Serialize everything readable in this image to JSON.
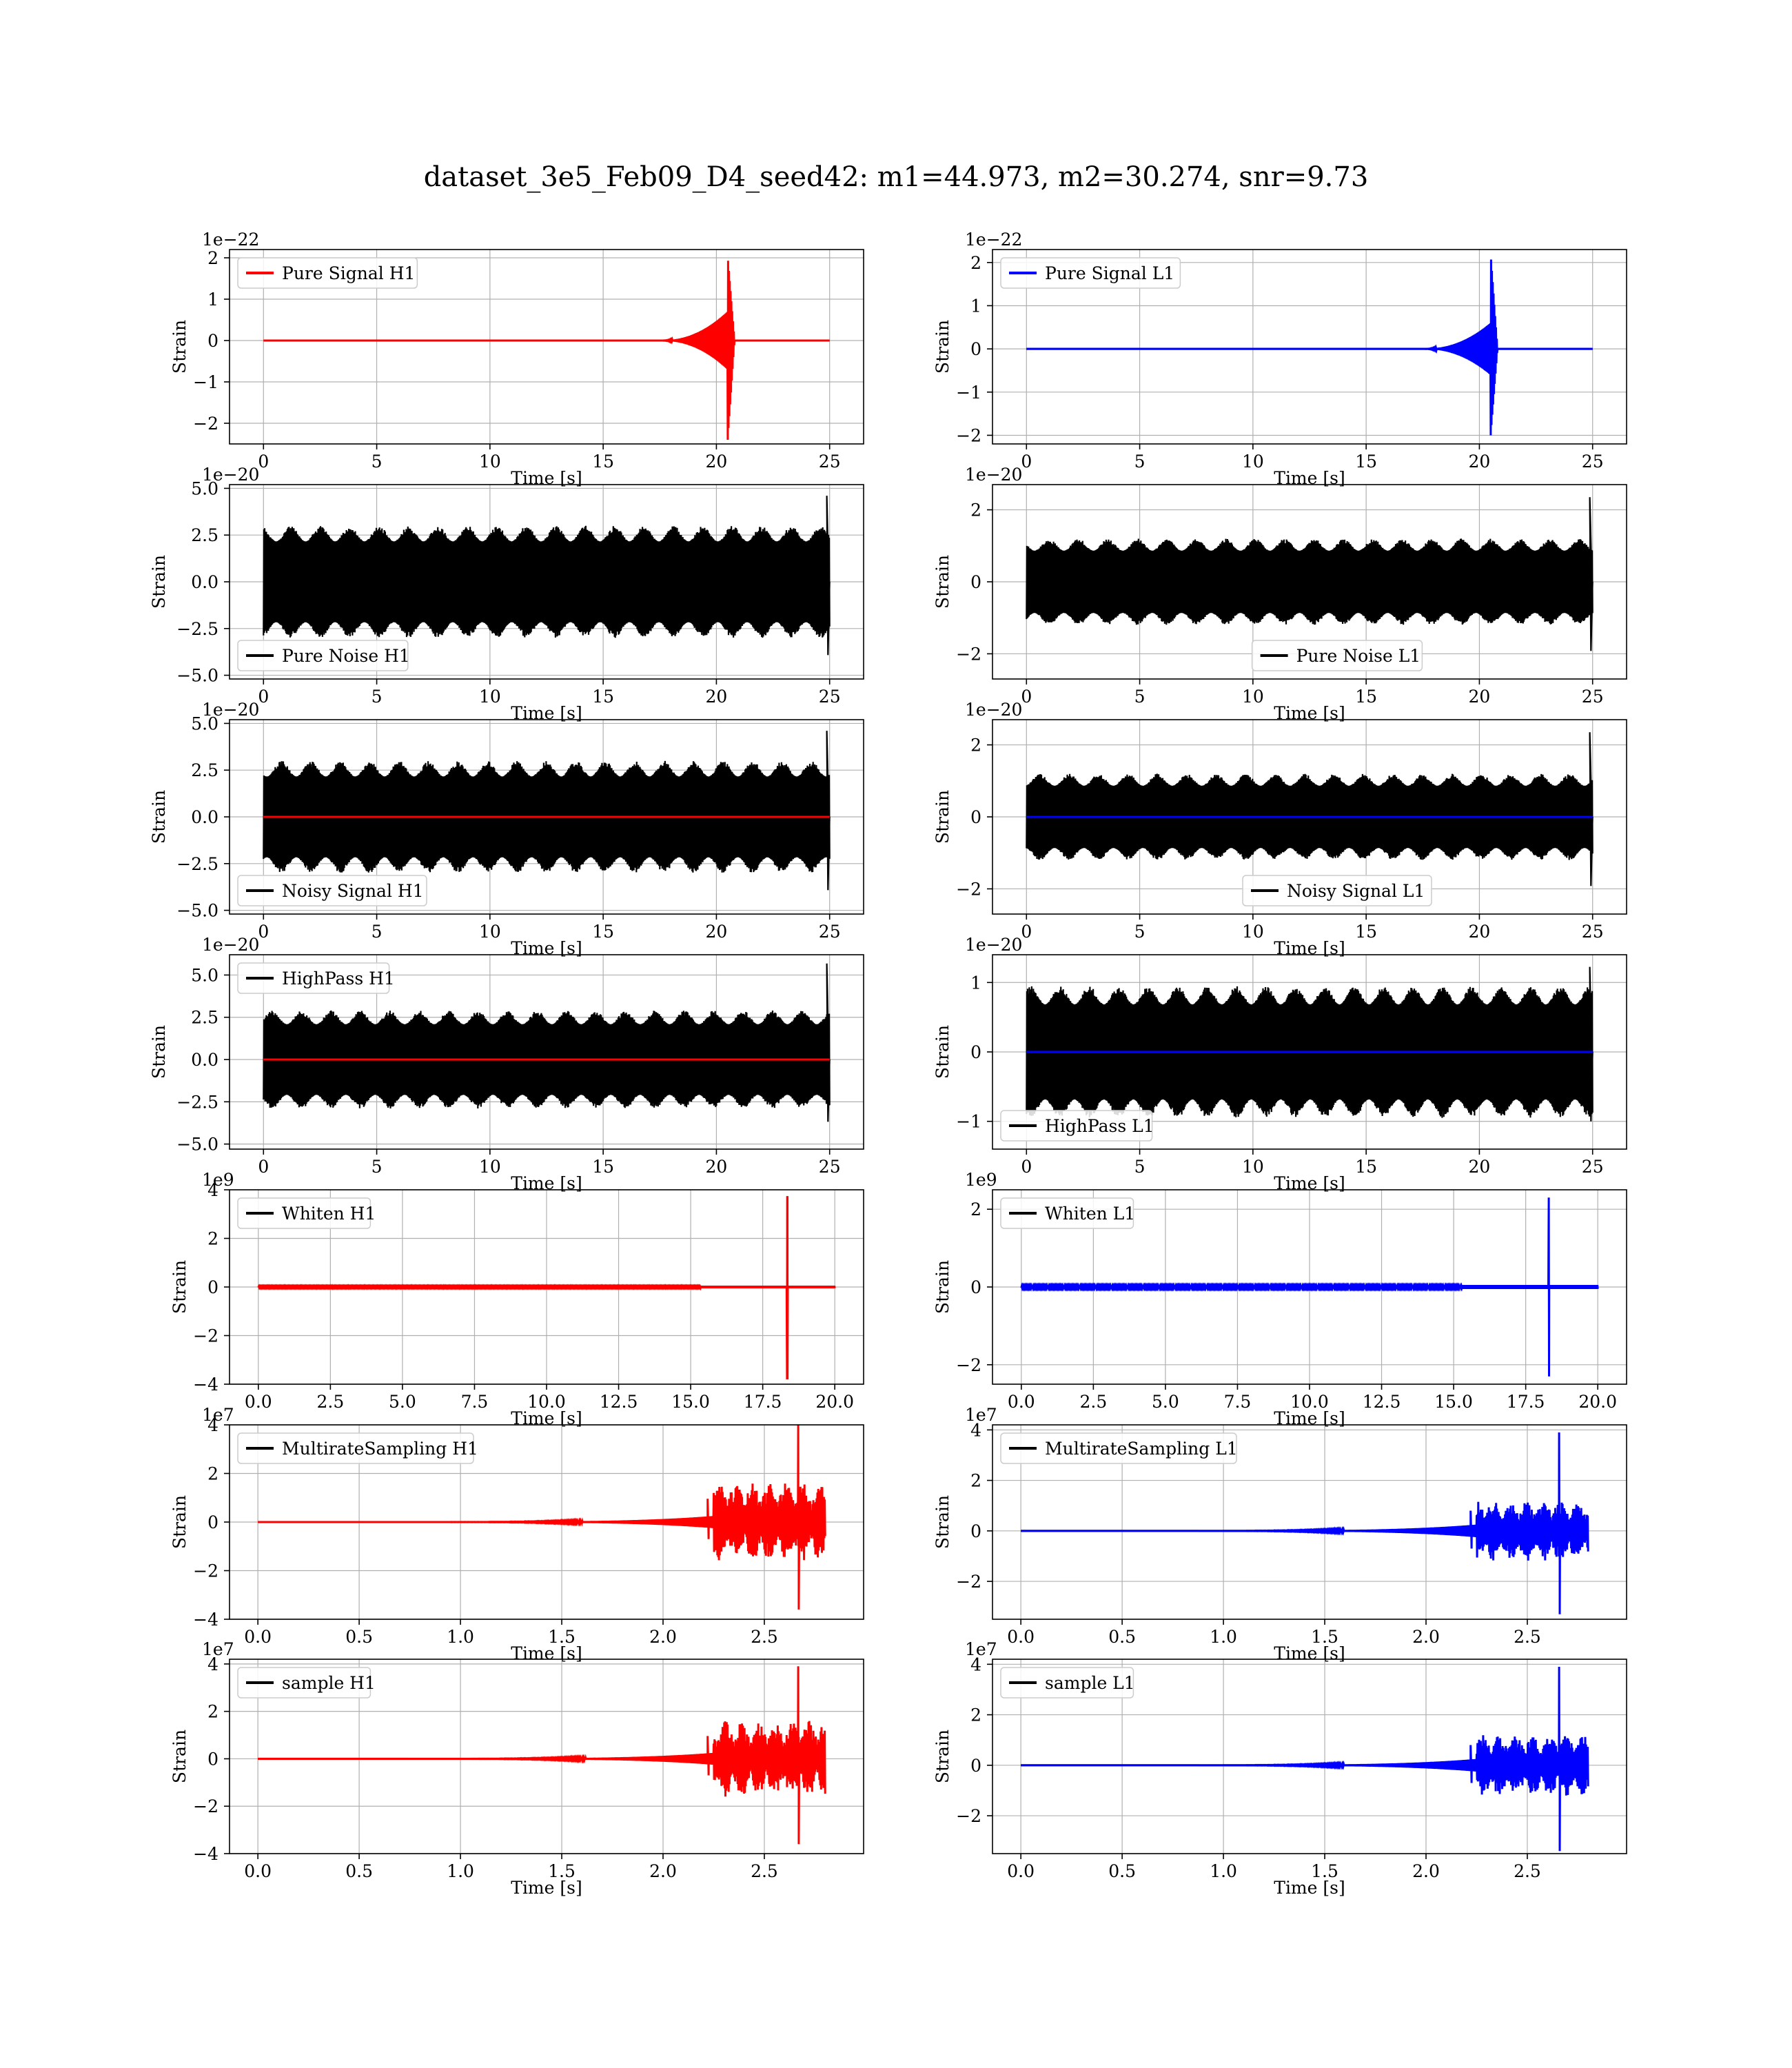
{
  "figure": {
    "title": "dataset_3e5_Feb09_D4_seed42: m1=44.973, m2=30.274, snr=9.73"
  },
  "colors": {
    "h1": "#ff0000",
    "l1": "#0000ff",
    "noise": "#000000"
  },
  "chart_data": [
    {
      "type": "line",
      "row": 0,
      "col": 0,
      "kind": "chirp",
      "legend": "Pure Signal H1",
      "legend_color": "#ff0000",
      "legend_loc": "upper-left",
      "series_colors": [
        "#ff0000"
      ],
      "xlabel": "Time [s]",
      "ylabel": "Strain",
      "offset": "1e−22",
      "xlim": [
        -1.5,
        26.5
      ],
      "ylim": [
        -2.5,
        2.2
      ],
      "xticks": [
        0,
        5,
        10,
        15,
        20,
        25
      ],
      "xtick_labels": [
        "0",
        "5",
        "10",
        "15",
        "20",
        "25"
      ],
      "yticks": [
        -2,
        -1,
        0,
        1,
        2
      ],
      "ytick_labels": [
        "−2",
        "−1",
        "0",
        "1",
        "2"
      ],
      "signal": {
        "duration": 25,
        "start": 17.5,
        "peak_time": 20.5,
        "end": 20.8,
        "pre_peak_amp": 0.7,
        "peak_max": 2.05,
        "peak_min": -2.4
      }
    },
    {
      "type": "line",
      "row": 0,
      "col": 1,
      "kind": "chirp",
      "legend": "Pure Signal L1",
      "legend_color": "#0000ff",
      "legend_loc": "upper-left",
      "series_colors": [
        "#0000ff"
      ],
      "xlabel": "Time [s]",
      "ylabel": "Strain",
      "offset": "1e−22",
      "xlim": [
        -1.5,
        26.5
      ],
      "ylim": [
        -2.2,
        2.3
      ],
      "xticks": [
        0,
        5,
        10,
        15,
        20,
        25
      ],
      "xtick_labels": [
        "0",
        "5",
        "10",
        "15",
        "20",
        "25"
      ],
      "yticks": [
        -2,
        -1,
        0,
        1,
        2
      ],
      "ytick_labels": [
        "−2",
        "−1",
        "0",
        "1",
        "2"
      ],
      "signal": {
        "duration": 25,
        "start": 17.5,
        "peak_time": 20.5,
        "end": 20.8,
        "pre_peak_amp": 0.6,
        "peak_max": 2.2,
        "peak_min": -2.0
      }
    },
    {
      "type": "line",
      "row": 1,
      "col": 0,
      "kind": "noise",
      "legend": "Pure Noise H1",
      "legend_color": "#000000",
      "legend_loc": "lower-left",
      "series_colors": [
        "#000000"
      ],
      "xlabel": "Time [s]",
      "ylabel": "Strain",
      "offset": "1e−20",
      "xlim": [
        -1.5,
        26.5
      ],
      "ylim": [
        -5.2,
        5.2
      ],
      "xticks": [
        0,
        5,
        10,
        15,
        20,
        25
      ],
      "xtick_labels": [
        "0",
        "5",
        "10",
        "15",
        "20",
        "25"
      ],
      "yticks": [
        -5,
        -2.5,
        0,
        2.5,
        5
      ],
      "ytick_labels": [
        "−5.0",
        "−2.5",
        "0.0",
        "2.5",
        "5.0"
      ],
      "signal": {
        "duration": 25,
        "base_amp": 3.0,
        "max_amp": 4.7,
        "min_amp": -4.9
      }
    },
    {
      "type": "line",
      "row": 1,
      "col": 1,
      "kind": "noise",
      "legend": "Pure Noise L1",
      "legend_color": "#000000",
      "legend_loc": "lower-center",
      "series_colors": [
        "#000000"
      ],
      "xlabel": "Time [s]",
      "ylabel": "Strain",
      "offset": "1e−20",
      "xlim": [
        -1.5,
        26.5
      ],
      "ylim": [
        -2.7,
        2.7
      ],
      "xticks": [
        0,
        5,
        10,
        15,
        20,
        25
      ],
      "xtick_labels": [
        "0",
        "5",
        "10",
        "15",
        "20",
        "25"
      ],
      "yticks": [
        -2,
        0,
        2
      ],
      "ytick_labels": [
        "−2",
        "0",
        "2"
      ],
      "signal": {
        "duration": 25,
        "base_amp": 1.2,
        "max_amp": 2.4,
        "min_amp": -2.4
      }
    },
    {
      "type": "line",
      "row": 2,
      "col": 0,
      "kind": "noise",
      "legend": "Noisy Signal H1",
      "legend_color": "#000000",
      "legend_loc": "lower-left",
      "series_colors": [
        "#000000",
        "#ff0000"
      ],
      "xlabel": "Time [s]",
      "ylabel": "Strain",
      "offset": "1e−20",
      "xlim": [
        -1.5,
        26.5
      ],
      "ylim": [
        -5.2,
        5.2
      ],
      "xticks": [
        0,
        5,
        10,
        15,
        20,
        25
      ],
      "xtick_labels": [
        "0",
        "5",
        "10",
        "15",
        "20",
        "25"
      ],
      "yticks": [
        -5,
        -2.5,
        0,
        2.5,
        5
      ],
      "ytick_labels": [
        "−5.0",
        "−2.5",
        "0.0",
        "2.5",
        "5.0"
      ],
      "signal": {
        "duration": 25,
        "base_amp": 3.0,
        "max_amp": 4.7,
        "min_amp": -4.9
      }
    },
    {
      "type": "line",
      "row": 2,
      "col": 1,
      "kind": "noise",
      "legend": "Noisy Signal L1",
      "legend_color": "#000000",
      "legend_loc": "lower-center",
      "series_colors": [
        "#000000",
        "#0000ff"
      ],
      "xlabel": "Time [s]",
      "ylabel": "Strain",
      "offset": "1e−20",
      "xlim": [
        -1.5,
        26.5
      ],
      "ylim": [
        -2.7,
        2.7
      ],
      "xticks": [
        0,
        5,
        10,
        15,
        20,
        25
      ],
      "xtick_labels": [
        "0",
        "5",
        "10",
        "15",
        "20",
        "25"
      ],
      "yticks": [
        -2,
        0,
        2
      ],
      "ytick_labels": [
        "−2",
        "0",
        "2"
      ],
      "signal": {
        "duration": 25,
        "base_amp": 1.2,
        "max_amp": 2.4,
        "min_amp": -2.4
      }
    },
    {
      "type": "line",
      "row": 3,
      "col": 0,
      "kind": "noise",
      "legend": "HighPass H1",
      "legend_color": "#000000",
      "legend_loc": "upper-left",
      "series_colors": [
        "#000000",
        "#ff0000"
      ],
      "xlabel": "Time [s]",
      "ylabel": "Strain",
      "offset": "1e−20",
      "xlim": [
        -1.5,
        26.5
      ],
      "ylim": [
        -5.3,
        6.2
      ],
      "xticks": [
        0,
        5,
        10,
        15,
        20,
        25
      ],
      "xtick_labels": [
        "0",
        "5",
        "10",
        "15",
        "20",
        "25"
      ],
      "yticks": [
        -5,
        -2.5,
        0,
        2.5,
        5
      ],
      "ytick_labels": [
        "−5.0",
        "−2.5",
        "0.0",
        "2.5",
        "5.0"
      ],
      "signal": {
        "duration": 25,
        "base_amp": 2.9,
        "max_amp": 5.8,
        "min_amp": -4.6
      }
    },
    {
      "type": "line",
      "row": 3,
      "col": 1,
      "kind": "noise",
      "legend": "HighPass L1",
      "legend_color": "#000000",
      "legend_loc": "lower-left",
      "series_colors": [
        "#000000",
        "#0000ff"
      ],
      "xlabel": "Time [s]",
      "ylabel": "Strain",
      "offset": "1e−20",
      "xlim": [
        -1.5,
        26.5
      ],
      "ylim": [
        -1.4,
        1.4
      ],
      "xticks": [
        0,
        5,
        10,
        15,
        20,
        25
      ],
      "xtick_labels": [
        "0",
        "5",
        "10",
        "15",
        "20",
        "25"
      ],
      "yticks": [
        -1,
        0,
        1
      ],
      "ytick_labels": [
        "−1",
        "0",
        "1"
      ],
      "signal": {
        "duration": 25,
        "base_amp": 0.95,
        "max_amp": 1.25,
        "min_amp": -1.25
      }
    },
    {
      "type": "line",
      "row": 4,
      "col": 0,
      "kind": "spike",
      "legend": "Whiten H1",
      "legend_color": "#000000",
      "legend_loc": "upper-left",
      "series_colors": [
        "#ff0000"
      ],
      "xlabel": "Time [s]",
      "ylabel": "Strain",
      "offset": "1e9",
      "xlim": [
        -1.0,
        21.0
      ],
      "ylim": [
        -4.0,
        4.0
      ],
      "xticks": [
        0,
        2.5,
        5,
        7.5,
        10,
        12.5,
        15,
        17.5,
        20
      ],
      "xtick_labels": [
        "0.0",
        "2.5",
        "5.0",
        "7.5",
        "10.0",
        "12.5",
        "15.0",
        "17.5",
        "20.0"
      ],
      "yticks": [
        -4,
        -2,
        0,
        2,
        4
      ],
      "ytick_labels": [
        "−4",
        "−2",
        "0",
        "2",
        "4"
      ],
      "signal": {
        "duration": 20,
        "spike_time": 18.35,
        "spike_max": 3.7,
        "spike_min": -3.8
      }
    },
    {
      "type": "line",
      "row": 4,
      "col": 1,
      "kind": "spike",
      "legend": "Whiten L1",
      "legend_color": "#000000",
      "legend_loc": "upper-left",
      "series_colors": [
        "#0000ff"
      ],
      "xlabel": "Time [s]",
      "ylabel": "Strain",
      "offset": "1e9",
      "xlim": [
        -1.0,
        21.0
      ],
      "ylim": [
        -2.5,
        2.5
      ],
      "xticks": [
        0,
        2.5,
        5,
        7.5,
        10,
        12.5,
        15,
        17.5,
        20
      ],
      "xtick_labels": [
        "0.0",
        "2.5",
        "5.0",
        "7.5",
        "10.0",
        "12.5",
        "15.0",
        "17.5",
        "20.0"
      ],
      "yticks": [
        -2,
        0,
        2
      ],
      "ytick_labels": [
        "−2",
        "0",
        "2"
      ],
      "signal": {
        "duration": 20,
        "spike_time": 18.3,
        "spike_max": 2.3,
        "spike_min": -2.3
      }
    },
    {
      "type": "line",
      "row": 5,
      "col": 0,
      "kind": "burst",
      "legend": "MultirateSampling H1",
      "legend_color": "#000000",
      "legend_loc": "upper-left",
      "series_colors": [
        "#ff0000"
      ],
      "xlabel": "Time [s]",
      "ylabel": "Strain",
      "offset": "1e7",
      "xlim": [
        -0.14,
        2.99
      ],
      "ylim": [
        -4.0,
        4.0
      ],
      "xticks": [
        0,
        0.5,
        1.0,
        1.5,
        2.0,
        2.5
      ],
      "xtick_labels": [
        "0.0",
        "0.5",
        "1.0",
        "1.5",
        "2.0",
        "2.5"
      ],
      "yticks": [
        -4,
        -2,
        0,
        2,
        4
      ],
      "ytick_labels": [
        "−4",
        "−2",
        "0",
        "2",
        "4"
      ],
      "signal": {
        "duration": 2.8,
        "burst_start": 2.25,
        "spike_time": 2.67,
        "spike_max": 4.0,
        "spike_min": -3.6,
        "burst_amp": 1.6
      }
    },
    {
      "type": "line",
      "row": 5,
      "col": 1,
      "kind": "burst",
      "legend": "MultirateSampling L1",
      "legend_color": "#000000",
      "legend_loc": "upper-left",
      "series_colors": [
        "#0000ff"
      ],
      "xlabel": "Time [s]",
      "ylabel": "Strain",
      "offset": "1e7",
      "xlim": [
        -0.14,
        2.99
      ],
      "ylim": [
        -3.5,
        4.2
      ],
      "xticks": [
        0,
        0.5,
        1.0,
        1.5,
        2.0,
        2.5
      ],
      "xtick_labels": [
        "0.0",
        "0.5",
        "1.0",
        "1.5",
        "2.0",
        "2.5"
      ],
      "yticks": [
        -2,
        0,
        2,
        4
      ],
      "ytick_labels": [
        "−2",
        "0",
        "2",
        "4"
      ],
      "signal": {
        "duration": 2.8,
        "burst_start": 2.25,
        "spike_time": 2.66,
        "spike_max": 3.9,
        "spike_min": -3.3,
        "burst_amp": 1.2
      }
    },
    {
      "type": "line",
      "row": 6,
      "col": 0,
      "kind": "burst",
      "legend": "sample H1",
      "legend_color": "#000000",
      "legend_loc": "upper-left",
      "series_colors": [
        "#ff0000"
      ],
      "xlabel": "Time [s]",
      "ylabel": "Strain",
      "offset": "1e7",
      "xlim": [
        -0.14,
        2.99
      ],
      "ylim": [
        -4.0,
        4.2
      ],
      "xticks": [
        0,
        0.5,
        1.0,
        1.5,
        2.0,
        2.5
      ],
      "xtick_labels": [
        "0.0",
        "0.5",
        "1.0",
        "1.5",
        "2.0",
        "2.5"
      ],
      "yticks": [
        -4,
        -2,
        0,
        2,
        4
      ],
      "ytick_labels": [
        "−4",
        "−2",
        "0",
        "2",
        "4"
      ],
      "signal": {
        "duration": 2.8,
        "burst_start": 2.25,
        "spike_time": 2.67,
        "spike_max": 3.9,
        "spike_min": -3.6,
        "burst_amp": 1.6
      }
    },
    {
      "type": "line",
      "row": 6,
      "col": 1,
      "kind": "burst",
      "legend": "sample L1",
      "legend_color": "#000000",
      "legend_loc": "upper-left",
      "series_colors": [
        "#0000ff"
      ],
      "xlabel": "Time [s]",
      "ylabel": "Strain",
      "offset": "1e7",
      "xlim": [
        -0.14,
        2.99
      ],
      "ylim": [
        -3.5,
        4.2
      ],
      "xticks": [
        0,
        0.5,
        1.0,
        1.5,
        2.0,
        2.5
      ],
      "xtick_labels": [
        "0.0",
        "0.5",
        "1.0",
        "1.5",
        "2.0",
        "2.5"
      ],
      "yticks": [
        -2,
        0,
        2,
        4
      ],
      "ytick_labels": [
        "−2",
        "0",
        "2",
        "4"
      ],
      "signal": {
        "duration": 2.8,
        "burst_start": 2.25,
        "spike_time": 2.66,
        "spike_max": 3.9,
        "spike_min": -3.4,
        "burst_amp": 1.2
      }
    }
  ]
}
